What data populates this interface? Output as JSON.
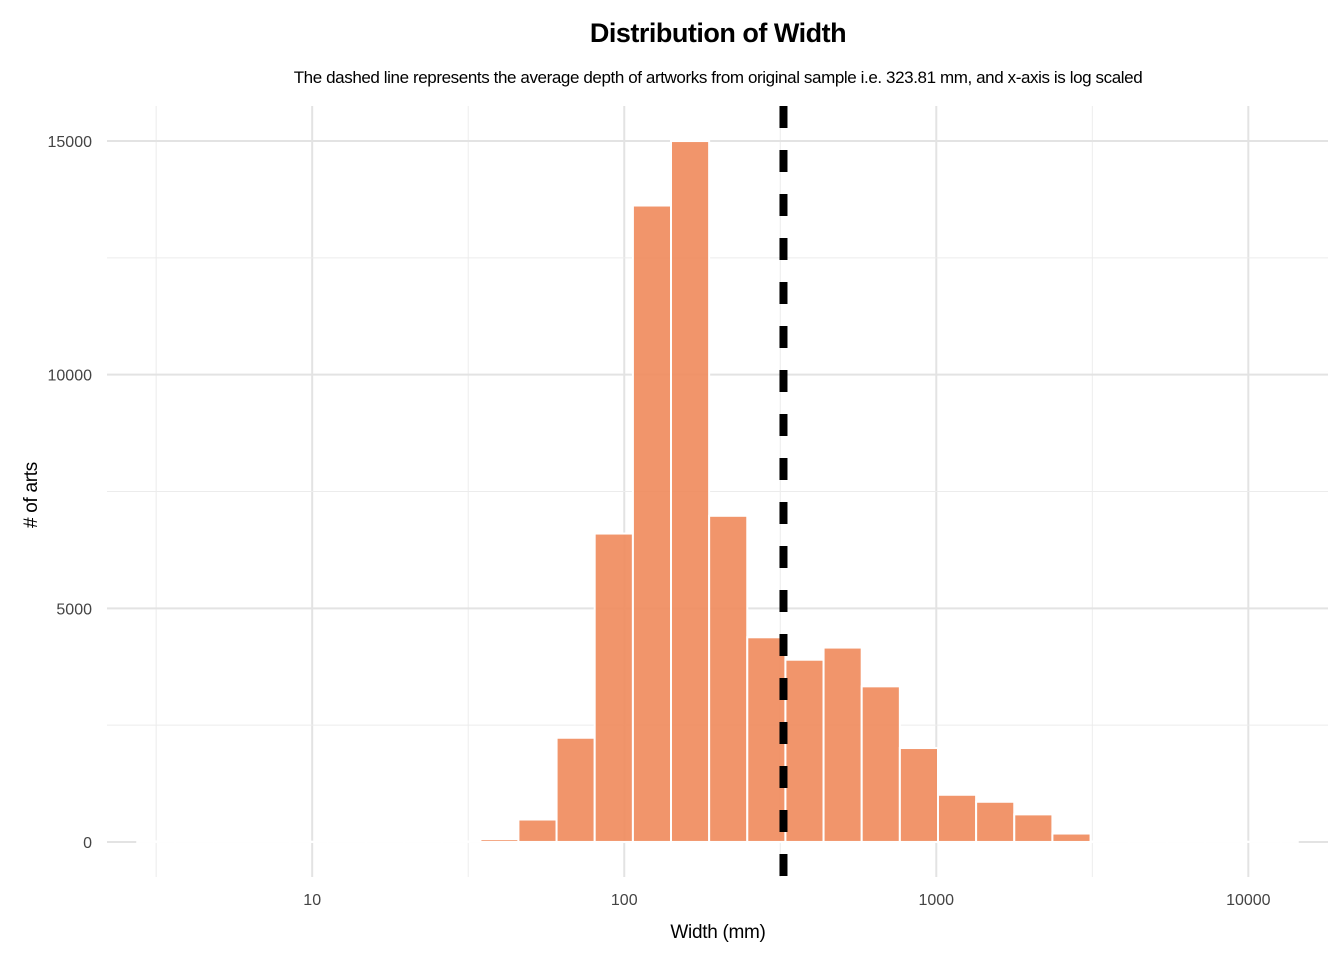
{
  "chart_data": {
    "type": "bar",
    "title": "Distribution of Width",
    "subtitle": "The dashed line represents the average depth of artworks from original sample i.e. 323.81 mm, and x-axis is log scaled",
    "xlabel": "Width (mm)",
    "ylabel": "# of arts",
    "x_scale": "log10",
    "xlim": [
      2.2,
      18000
    ],
    "ylim": [
      -750,
      15750
    ],
    "x_ticks": [
      10,
      100,
      1000,
      10000
    ],
    "x_tick_labels": [
      "10",
      "100",
      "1000",
      "10000"
    ],
    "y_ticks": [
      0,
      5000,
      10000,
      15000
    ],
    "y_tick_labels": [
      "0",
      "5000",
      "10000",
      "15000"
    ],
    "grid": true,
    "bar_color": "#f08a5b",
    "bar_border_color": "#ffffff",
    "mean_line": {
      "value": 323.81,
      "color": "#000000",
      "style": "dashed"
    },
    "bins": [
      {
        "x_min": 2.75,
        "x_max": 3.64,
        "count": 10
      },
      {
        "x_min": 3.64,
        "x_max": 4.83,
        "count": 5
      },
      {
        "x_min": 4.83,
        "x_max": 6.39,
        "count": 5
      },
      {
        "x_min": 6.39,
        "x_max": 8.47,
        "count": 5
      },
      {
        "x_min": 8.47,
        "x_max": 11.2,
        "count": 5
      },
      {
        "x_min": 11.2,
        "x_max": 14.9,
        "count": 5
      },
      {
        "x_min": 14.9,
        "x_max": 19.7,
        "count": 5
      },
      {
        "x_min": 19.7,
        "x_max": 26.1,
        "count": 5
      },
      {
        "x_min": 26.1,
        "x_max": 34.6,
        "count": 10
      },
      {
        "x_min": 34.6,
        "x_max": 45.8,
        "count": 60
      },
      {
        "x_min": 45.8,
        "x_max": 60.7,
        "count": 480
      },
      {
        "x_min": 60.7,
        "x_max": 80.4,
        "count": 2230
      },
      {
        "x_min": 80.4,
        "x_max": 106.6,
        "count": 6600
      },
      {
        "x_min": 106.6,
        "x_max": 141.2,
        "count": 13620
      },
      {
        "x_min": 141.2,
        "x_max": 187.1,
        "count": 15000
      },
      {
        "x_min": 187.1,
        "x_max": 247.9,
        "count": 6980
      },
      {
        "x_min": 247.9,
        "x_max": 328.5,
        "count": 4380
      },
      {
        "x_min": 328.5,
        "x_max": 435.3,
        "count": 3900
      },
      {
        "x_min": 435.3,
        "x_max": 576.7,
        "count": 4160
      },
      {
        "x_min": 576.7,
        "x_max": 764.2,
        "count": 3330
      },
      {
        "x_min": 764.2,
        "x_max": 1012.6,
        "count": 2010
      },
      {
        "x_min": 1012.6,
        "x_max": 1341.7,
        "count": 1010
      },
      {
        "x_min": 1341.7,
        "x_max": 1777.8,
        "count": 860
      },
      {
        "x_min": 1777.8,
        "x_max": 2355.6,
        "count": 590
      },
      {
        "x_min": 2355.6,
        "x_max": 3121.2,
        "count": 180
      },
      {
        "x_min": 3121.2,
        "x_max": 4135.6,
        "count": 10
      },
      {
        "x_min": 4135.6,
        "x_max": 5479.8,
        "count": 5
      },
      {
        "x_min": 5479.8,
        "x_max": 7260.8,
        "count": 5
      },
      {
        "x_min": 7260.8,
        "x_max": 9620.6,
        "count": 5
      },
      {
        "x_min": 9620.6,
        "x_max": 12747.4,
        "count": 5
      },
      {
        "x_min": 12747.4,
        "x_max": 14400,
        "count": 5
      }
    ]
  }
}
